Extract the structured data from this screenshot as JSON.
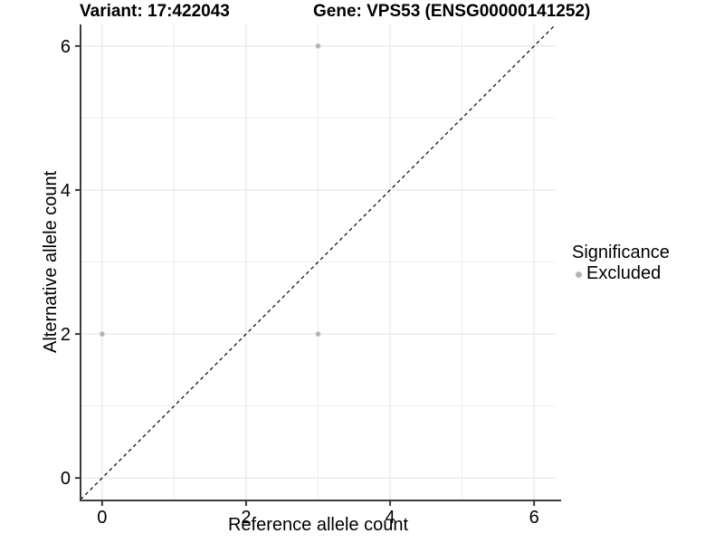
{
  "figure": {
    "title_left": "Variant: 17:422043",
    "title_right": "Gene: VPS53 (ENSG00000141252)"
  },
  "legend": {
    "title": "Significance",
    "items": [
      {
        "label": "Excluded",
        "marker": "circle",
        "color": "#b4b4b4"
      }
    ]
  },
  "chart_data": {
    "type": "scatter",
    "title": "Variant: 17:422043 — Gene: VPS53 (ENSG00000141252)",
    "xlabel": "Reference allele count",
    "ylabel": "Alternative allele count",
    "xlim": [
      -0.3,
      6.3
    ],
    "ylim": [
      -0.3,
      6.3
    ],
    "x_ticks": [
      0,
      2,
      4,
      6
    ],
    "y_ticks": [
      0,
      2,
      4,
      6
    ],
    "x_grid_minor": [
      1,
      3,
      5
    ],
    "y_grid_minor": [
      1,
      3,
      5
    ],
    "grid": true,
    "legend_position": "right",
    "series": [
      {
        "name": "Excluded",
        "color": "#b4b4b4",
        "points": [
          [
            0,
            2
          ],
          [
            3,
            2
          ],
          [
            3,
            6
          ]
        ]
      }
    ],
    "reference_line": {
      "type": "identity",
      "from": [
        -0.3,
        -0.3
      ],
      "to": [
        6.3,
        6.3
      ],
      "style": "dashed",
      "color": "#000000"
    },
    "colors": {
      "grid_major": "#e3e3e3",
      "grid_minor": "#efefef",
      "axis_line": "#3c3c3c",
      "tick_label": "#000000",
      "background": "#ffffff"
    }
  }
}
